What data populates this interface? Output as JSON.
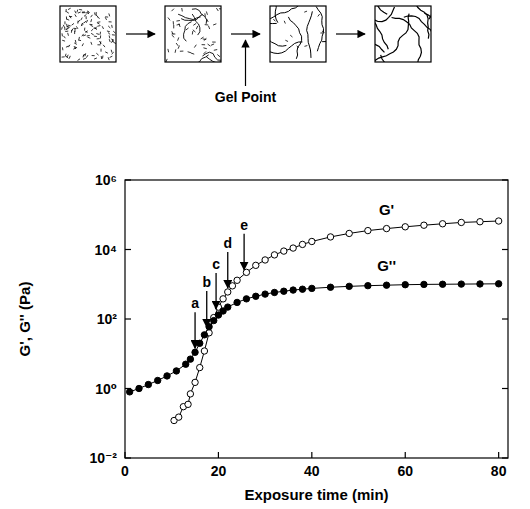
{
  "chart_data": {
    "type": "line",
    "log": "y",
    "grid": false,
    "x_label": "Exposure time (min)",
    "y_label": "G', G'' (Pa)",
    "schematic_label": "Gel Point",
    "xlim": [
      0,
      82
    ],
    "xticks": [
      0,
      20,
      40,
      60,
      80
    ],
    "ylim": [
      0.01,
      1000000
    ],
    "yticks": [
      {
        "value": 0.01,
        "label": "10⁻²"
      },
      {
        "value": 1,
        "label": "10⁰"
      },
      {
        "value": 100,
        "label": "10²"
      },
      {
        "value": 10000,
        "label": "10⁴"
      },
      {
        "value": 1000000,
        "label": "10⁶"
      }
    ],
    "series": [
      {
        "name": "G'",
        "color": "#000000",
        "marker": "open-circle",
        "line_style": "solid",
        "x": [
          10.5,
          11.5,
          12.5,
          13.5,
          14,
          15,
          16,
          17,
          18,
          19,
          20,
          21,
          22,
          23,
          24,
          26,
          28,
          30,
          32,
          34,
          36,
          38,
          40,
          44,
          48,
          52,
          56,
          60,
          64,
          68,
          72,
          76,
          80
        ],
        "values": [
          0.12,
          0.15,
          0.3,
          0.35,
          0.7,
          1.5,
          4,
          12,
          40,
          110,
          220,
          380,
          600,
          900,
          1300,
          2200,
          3500,
          5000,
          7000,
          9000,
          11000,
          14000,
          17000,
          23000,
          29000,
          35000,
          40000,
          45000,
          50000,
          55000,
          60000,
          63000,
          66000
        ]
      },
      {
        "name": "G''",
        "color": "#000000",
        "marker": "filled-circle",
        "line_style": "solid",
        "x": [
          1,
          3,
          5,
          7,
          9,
          11,
          13,
          14,
          15,
          16,
          17,
          18,
          19,
          20,
          21,
          22,
          24,
          26,
          28,
          30,
          32,
          34,
          36,
          38,
          40,
          44,
          48,
          52,
          56,
          60,
          64,
          68,
          72,
          76,
          80
        ],
        "values": [
          0.8,
          1.0,
          1.3,
          1.7,
          2.3,
          3.2,
          5,
          7,
          11,
          20,
          35,
          60,
          90,
          130,
          170,
          220,
          300,
          380,
          450,
          520,
          580,
          630,
          680,
          720,
          760,
          820,
          870,
          910,
          940,
          970,
          990,
          1000,
          1010,
          1020,
          1030
        ]
      }
    ],
    "annotations": [
      {
        "text": "a",
        "x": 15,
        "y": 11
      },
      {
        "text": "b",
        "x": 17.5,
        "y": 45
      },
      {
        "text": "c",
        "x": 19.5,
        "y": 150
      },
      {
        "text": "d",
        "x": 22,
        "y": 600
      },
      {
        "text": "e",
        "x": 25.5,
        "y": 2000
      }
    ]
  }
}
